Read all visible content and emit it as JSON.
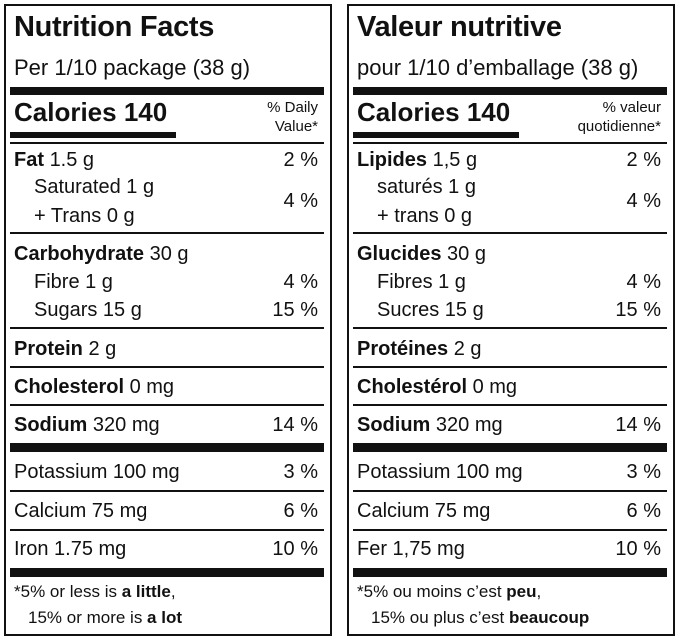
{
  "panels": [
    {
      "title": "Nutrition Facts",
      "serving": "Per 1/10 package (38 g)",
      "calories": "Calories 140",
      "dv_header": [
        "% Daily",
        "Value*"
      ],
      "rows": [
        {
          "bold": "Fat",
          "text": "1.5 g",
          "dv": "2 %"
        },
        {
          "lines": [
            "Saturated 1 g",
            "+ Trans 0 g"
          ],
          "dv": "4 %"
        },
        {
          "bold": "Carbohydrate",
          "text": "30 g"
        },
        {
          "text": "Fibre 1 g",
          "dv": "4 %"
        },
        {
          "text": "Sugars 15 g",
          "dv": "15 %"
        },
        {
          "bold": "Protein",
          "text": "2 g"
        },
        {
          "bold": "Cholesterol",
          "text": "0 mg"
        },
        {
          "bold": "Sodium",
          "text": "320 mg",
          "dv": "14 %"
        },
        {
          "text": "Potassium 100 mg",
          "dv": "3 %"
        },
        {
          "text": "Calcium 75 mg",
          "dv": "6 %"
        },
        {
          "text": "Iron 1.75 mg",
          "dv": "10 %"
        }
      ],
      "footnote": [
        [
          "*5% or less is ",
          "a little",
          ","
        ],
        [
          "15% or more is ",
          "a lot"
        ]
      ]
    },
    {
      "title": "Valeur nutritive",
      "serving": "pour 1/10 d’emballage (38 g)",
      "calories": "Calories 140",
      "dv_header": [
        "% valeur",
        "quotidienne*"
      ],
      "rows": [
        {
          "bold": "Lipides",
          "text": "1,5 g",
          "dv": "2 %"
        },
        {
          "lines": [
            "saturés 1 g",
            "+ trans 0 g"
          ],
          "dv": "4 %"
        },
        {
          "bold": "Glucides",
          "text": "30 g"
        },
        {
          "text": "Fibres 1 g",
          "dv": "4 %"
        },
        {
          "text": "Sucres 15 g",
          "dv": "15 %"
        },
        {
          "bold": "Protéines",
          "text": "2 g"
        },
        {
          "bold": "Cholestérol",
          "text": "0 mg"
        },
        {
          "bold": "Sodium",
          "text": "320 mg",
          "dv": "14 %"
        },
        {
          "text": "Potassium 100 mg",
          "dv": "3 %"
        },
        {
          "text": "Calcium 75 mg",
          "dv": "6 %"
        },
        {
          "text": "Fer 1,75 mg",
          "dv": "10 %"
        }
      ],
      "footnote": [
        [
          "*5% ou moins c’est ",
          "peu",
          ","
        ],
        [
          "15% ou plus c’est ",
          "beaucoup"
        ]
      ]
    }
  ]
}
